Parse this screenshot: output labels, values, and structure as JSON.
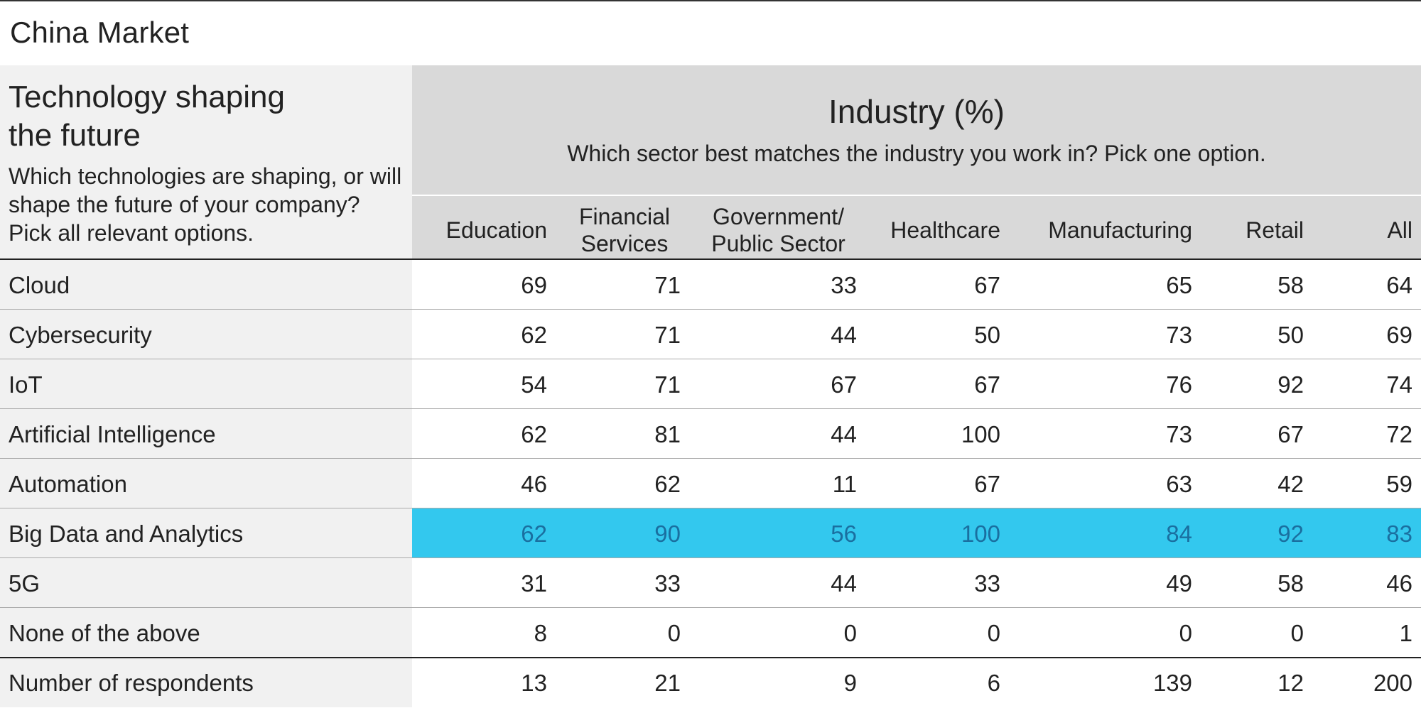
{
  "market_title": "China Market",
  "question": {
    "title_line1": "Technology shaping",
    "title_line2": "the future",
    "text": "Which technologies are shaping, or will shape the future of your company? Pick all relevant options."
  },
  "industry": {
    "title": "Industry (%)",
    "subtitle": "Which sector best matches the industry you work in? Pick one option."
  },
  "columns": [
    "Education",
    "Financial\nServices",
    "Government/\nPublic Sector",
    "Healthcare",
    "Manufacturing",
    "Retail",
    "All"
  ],
  "rows": [
    {
      "label": "Cloud",
      "values": [
        "69",
        "71",
        "33",
        "67",
        "65",
        "58",
        "64"
      ]
    },
    {
      "label": "Cybersecurity",
      "values": [
        "62",
        "71",
        "44",
        "50",
        "73",
        "50",
        "69"
      ]
    },
    {
      "label": "IoT",
      "values": [
        "54",
        "71",
        "67",
        "67",
        "76",
        "92",
        "74"
      ]
    },
    {
      "label": "Artificial Intelligence",
      "values": [
        "62",
        "81",
        "44",
        "100",
        "73",
        "67",
        "72"
      ]
    },
    {
      "label": "Automation",
      "values": [
        "46",
        "62",
        "11",
        "67",
        "63",
        "42",
        "59"
      ]
    },
    {
      "label": "Big Data and Analytics",
      "values": [
        "62",
        "90",
        "56",
        "100",
        "84",
        "92",
        "83"
      ],
      "highlighted": true
    },
    {
      "label": "5G",
      "values": [
        "31",
        "33",
        "44",
        "33",
        "49",
        "58",
        "46"
      ]
    },
    {
      "label": "None of the above",
      "values": [
        "8",
        "0",
        "0",
        "0",
        "0",
        "0",
        "1"
      ]
    },
    {
      "label": "Number of respondents",
      "values": [
        "13",
        "21",
        "9",
        "6",
        "139",
        "12",
        "200"
      ],
      "total": true
    }
  ],
  "colors": {
    "highlight_bg": "#33c8ee",
    "highlight_text": "#1a6fa0",
    "label_bg": "#f1f1f1",
    "header_bg": "#d9d9d9"
  }
}
